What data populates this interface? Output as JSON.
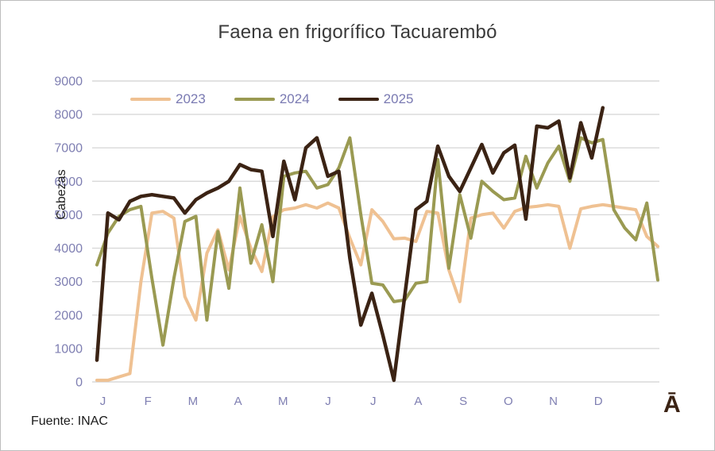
{
  "title": "Faena en frigorífico Tacuarembó",
  "source_note": "Fuente: INAC",
  "stray_glyph": "Ā",
  "colors": {
    "axis_text": "#7f7fb2",
    "gridline": "#d9d9d9",
    "title_text": "#3a3a3a",
    "series_2023": "#efc192",
    "series_2024": "#9a9a52",
    "series_2025": "#3b2314"
  },
  "chart_data": {
    "type": "line",
    "title": "Faena en frigorífico Tacuarembó",
    "ylabel": "Cabezas",
    "xlabel": "",
    "ylim": [
      0,
      9000
    ],
    "y_tick_step": 1000,
    "grid": "horizontal",
    "legend_position": "top-left-inside",
    "x_unit": "weekly points, Jan-Dec",
    "months": [
      "J",
      "F",
      "M",
      "A",
      "M",
      "J",
      "J",
      "A",
      "S",
      "O",
      "N",
      "D"
    ],
    "series": [
      {
        "name": "2023",
        "color": "#efc192",
        "values": [
          50,
          50,
          150,
          250,
          3000,
          5050,
          5100,
          4900,
          2550,
          1850,
          3850,
          4550,
          3350,
          4950,
          4000,
          3300,
          4940,
          5150,
          5200,
          5300,
          5200,
          5350,
          5200,
          4300,
          3500,
          5150,
          4800,
          4280,
          4300,
          4200,
          5100,
          5050,
          3350,
          2400,
          4900,
          5000,
          5050,
          4600,
          5100,
          5220,
          5250,
          5300,
          5250,
          4000,
          5180,
          5250,
          5300,
          5250,
          5200,
          5150,
          4350,
          4050
        ]
      },
      {
        "name": "2024",
        "color": "#9a9a52",
        "values": [
          3500,
          4450,
          4950,
          5150,
          5250,
          3100,
          1100,
          3100,
          4800,
          4950,
          1850,
          4500,
          2800,
          5800,
          3550,
          4700,
          3000,
          6150,
          6250,
          6300,
          5800,
          5900,
          6400,
          7300,
          5000,
          2950,
          2900,
          2400,
          2450,
          2950,
          3000,
          6650,
          3400,
          5600,
          4300,
          6000,
          5700,
          5450,
          5500,
          6750,
          5800,
          6550,
          7050,
          6000,
          7300,
          7150,
          7250,
          5150,
          4600,
          4250,
          5350,
          3050
        ]
      },
      {
        "name": "2025",
        "color": "#3b2314",
        "values": [
          650,
          5050,
          4850,
          5400,
          5550,
          5600,
          5550,
          5500,
          5050,
          5450,
          5650,
          5800,
          6000,
          6500,
          6350,
          6300,
          4350,
          6600,
          5450,
          7000,
          7300,
          6150,
          6300,
          3700,
          1700,
          2650,
          1400,
          50,
          2600,
          5150,
          5400,
          7050,
          6150,
          5700,
          6400,
          7100,
          6250,
          6850,
          7080,
          4870,
          7650,
          7600,
          7800,
          6100,
          7750,
          6700,
          8200
        ]
      }
    ]
  }
}
